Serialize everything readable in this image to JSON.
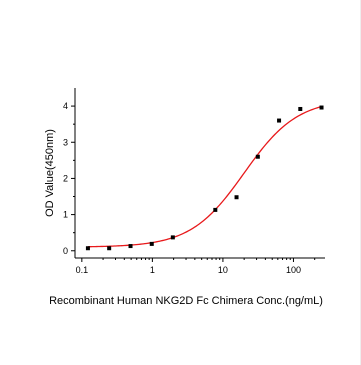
{
  "chart_data": {
    "type": "scatter",
    "title": "",
    "xlabel": "Recombinant Human NKG2D Fc Chimera Conc.(ng/mL)",
    "ylabel": "OD Value(450nm)",
    "x_scale": "log",
    "xlim": [
      0.08,
      280
    ],
    "ylim": [
      -0.2,
      4.5
    ],
    "x_ticks": [
      0.1,
      1,
      10,
      100
    ],
    "x_tick_labels": [
      "0.1",
      "1",
      "10",
      "100"
    ],
    "y_ticks": [
      0,
      1,
      2,
      3,
      4
    ],
    "y_tick_labels": [
      "0",
      "1",
      "2",
      "3",
      "4"
    ],
    "grid": false,
    "legend": "none",
    "series": [
      {
        "type": "scatter",
        "marker": "square",
        "color": "#000000",
        "x": [
          0.122,
          0.244,
          0.49,
          0.98,
          1.95,
          7.8,
          15.6,
          31.25,
          62.5,
          125,
          250
        ],
        "y": [
          0.07,
          0.07,
          0.13,
          0.19,
          0.37,
          1.13,
          1.48,
          2.6,
          3.6,
          3.92,
          3.96
        ]
      },
      {
        "type": "line",
        "fit": "4PL",
        "color": "#e8191b",
        "params": {
          "bottom": 0.1,
          "top": 4.2,
          "ec50": 20,
          "hill": 1.15
        }
      }
    ]
  }
}
